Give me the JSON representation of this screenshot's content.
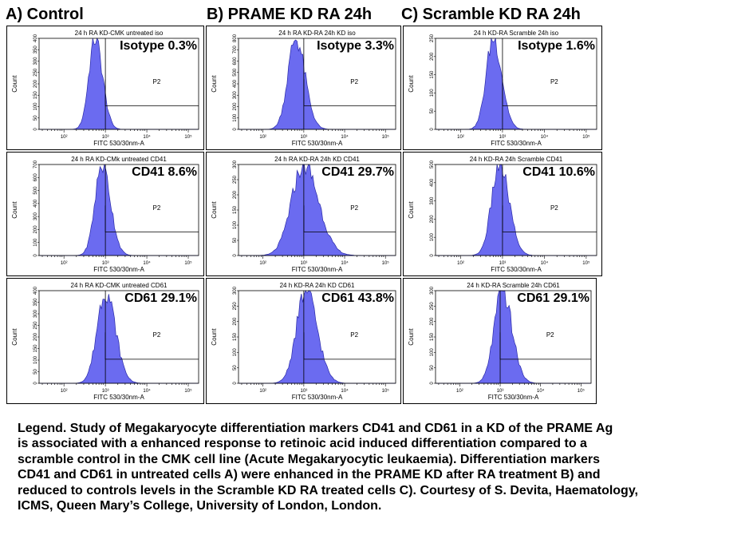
{
  "columns": [
    "A) Control",
    "B) PRAME KD RA 24h",
    "C) Scramble KD RA 24h"
  ],
  "chart_data": [
    {
      "type": "histogram",
      "title": "24 h RA KD-CMK untreated iso",
      "xlabel": "FITC 530/30nm-A",
      "ylabel": "Count",
      "annotation": "Isotype 0.3%",
      "gate": "P2",
      "x_scale": "log",
      "x_ticks": [
        "10²",
        "10³",
        "10⁴",
        "10⁵"
      ],
      "y_ticks": [
        "0",
        "50",
        "100",
        "150",
        "200",
        "250",
        "300",
        "350",
        "400"
      ],
      "peak_log10": 2.75,
      "peak_count": 400,
      "width_log10": 0.15
    },
    {
      "type": "histogram",
      "title": "24 h RA KD-RA 24h KD iso",
      "xlabel": "FITC 530/30nm-A",
      "ylabel": "Count",
      "annotation": "Isotype 3.3%",
      "gate": "P2",
      "x_scale": "log",
      "x_ticks": [
        "10²",
        "10³",
        "10⁴",
        "10⁵"
      ],
      "y_ticks": [
        "0",
        "100",
        "200",
        "300",
        "400",
        "500",
        "600",
        "700",
        "800"
      ],
      "peak_log10": 2.8,
      "peak_count": 800,
      "width_log10": 0.19
    },
    {
      "type": "histogram",
      "title": "24 h KD-RA Scramble 24h iso",
      "xlabel": "FITC 530/30nm-A",
      "ylabel": "Count",
      "annotation": "Isotype 1.6%",
      "gate": "P2",
      "x_scale": "log",
      "x_ticks": [
        "10²",
        "10³",
        "10⁴",
        "10⁵"
      ],
      "y_ticks": [
        "0",
        "50",
        "100",
        "150",
        "200",
        "250"
      ],
      "peak_log10": 2.78,
      "peak_count": 250,
      "width_log10": 0.17
    },
    {
      "type": "histogram",
      "title": "24 h RA KD-CMk untreated CD41",
      "xlabel": "FITC 530/30nm-A",
      "ylabel": "Count",
      "annotation": "CD41 8.6%",
      "gate": "P2",
      "x_scale": "log",
      "x_ticks": [
        "10²",
        "10³",
        "10⁴",
        "10⁵"
      ],
      "y_ticks": [
        "0",
        "100",
        "200",
        "300",
        "400",
        "500",
        "600",
        "700"
      ],
      "peak_log10": 2.92,
      "peak_count": 700,
      "width_log10": 0.17
    },
    {
      "type": "histogram",
      "title": "24 h RA KD-RA 24h  KD CD41",
      "xlabel": "FITC 530/30nm-A",
      "ylabel": "Count",
      "annotation": "CD41 29.7%",
      "gate": "P2",
      "x_scale": "log",
      "x_ticks": [
        "10²",
        "10³",
        "10⁴",
        "10⁵"
      ],
      "y_ticks": [
        "0",
        "50",
        "100",
        "150",
        "200",
        "250",
        "300"
      ],
      "peak_log10": 3.0,
      "peak_count": 300,
      "width_log10": 0.3
    },
    {
      "type": "histogram",
      "title": "24 h KD-RA 24h Scramble CD41",
      "xlabel": "FITC 530/30nm-A",
      "ylabel": "Count",
      "annotation": "CD41 10.6%",
      "gate": "P2",
      "x_scale": "log",
      "x_ticks": [
        "10²",
        "10³",
        "10⁴",
        "10⁵"
      ],
      "y_ticks": [
        "0",
        "100",
        "200",
        "300",
        "400",
        "500"
      ],
      "peak_log10": 2.93,
      "peak_count": 500,
      "width_log10": 0.19
    },
    {
      "type": "histogram",
      "title": "24 h RA KD-CMK untreated CD61",
      "xlabel": "FITC 530/30nm-A",
      "ylabel": "Count",
      "annotation": "CD61 29.1%",
      "gate": "P2",
      "x_scale": "log",
      "x_ticks": [
        "10²",
        "10³",
        "10⁴",
        "10⁵"
      ],
      "y_ticks": [
        "0",
        "50",
        "100",
        "150",
        "200",
        "250",
        "300",
        "350",
        "400"
      ],
      "peak_log10": 3.0,
      "peak_count": 400,
      "width_log10": 0.2
    },
    {
      "type": "histogram",
      "title": "24 h KD-RA 24h KD CD61",
      "xlabel": "FITC 530/30nm-A",
      "ylabel": "Count",
      "annotation": "CD61 43.8%",
      "gate": "P2",
      "x_scale": "log",
      "x_ticks": [
        "10²",
        "10³",
        "10⁴",
        "10⁵"
      ],
      "y_ticks": [
        "0",
        "50",
        "100",
        "150",
        "200",
        "250",
        "300"
      ],
      "peak_log10": 3.05,
      "peak_count": 300,
      "width_log10": 0.23
    },
    {
      "type": "histogram",
      "title": "24 h KD-RA Scramble 24h CD61",
      "xlabel": "FITC 530/30nm-A",
      "ylabel": "Count",
      "annotation": "CD61 29.1%",
      "gate": "P2",
      "x_scale": "log",
      "x_ticks": [
        "10²",
        "10³",
        "10⁴",
        "10⁵"
      ],
      "y_ticks": [
        "0",
        "50",
        "100",
        "150",
        "200",
        "250",
        "300"
      ],
      "peak_log10": 3.05,
      "peak_count": 300,
      "width_log10": 0.2
    }
  ],
  "legend_lines": [
    "Legend. Study of Megakaryocyte differentiation markers CD41 and CD61 in a KD of the PRAME Ag",
    "is associated with a enhanced response to retinoic acid induced differentiation compared to a",
    "scramble control in the CMK cell line (Acute Megakaryocytic leukaemia). Differentiation markers",
    "CD41 and CD61 in untreated cells A) were enhanced in the PRAME KD after RA treatment B) and",
    "reduced to controls levels in the Scramble KD RA treated cells C). Courtesy of S. Devita, Haematology,",
    "ICMS, Queen Mary’s College, University of London, London."
  ],
  "colors": {
    "fill": "#6b6bf0",
    "stroke": "#2a2aa8",
    "frame": "#000000"
  }
}
